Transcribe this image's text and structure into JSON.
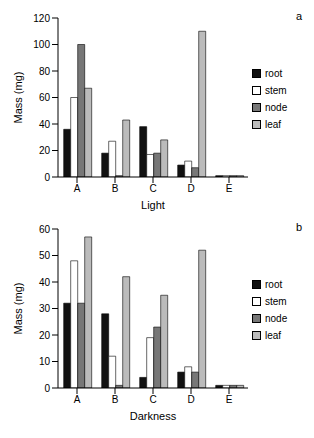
{
  "chart_data": [
    {
      "type": "bar",
      "title": "a",
      "x_label": "Light",
      "y_label": "Mass (mg)",
      "categories": [
        "A",
        "B",
        "C",
        "D",
        "E"
      ],
      "ylim": [
        0,
        120
      ],
      "yticks": [
        0,
        20,
        40,
        60,
        80,
        100,
        120
      ],
      "legend": "right",
      "series": [
        {
          "name": "root",
          "color": "#111111",
          "values": [
            36,
            18,
            38,
            9,
            1
          ]
        },
        {
          "name": "stem",
          "color": "#ffffff",
          "values": [
            60,
            27,
            17,
            12,
            1
          ]
        },
        {
          "name": "node",
          "color": "#777777",
          "values": [
            100,
            1,
            18,
            7,
            1
          ]
        },
        {
          "name": "leaf",
          "color": "#bbbbbb",
          "values": [
            67,
            43,
            28,
            110,
            1
          ]
        }
      ]
    },
    {
      "type": "bar",
      "title": "b",
      "x_label": "Darkness",
      "y_label": "Mass (mg)",
      "categories": [
        "A",
        "B",
        "C",
        "D",
        "E"
      ],
      "ylim": [
        0,
        60
      ],
      "yticks": [
        0,
        10,
        20,
        30,
        40,
        50,
        60
      ],
      "legend": "right",
      "series": [
        {
          "name": "root",
          "color": "#111111",
          "values": [
            32,
            28,
            4,
            6,
            1
          ]
        },
        {
          "name": "stem",
          "color": "#ffffff",
          "values": [
            48,
            12,
            19,
            8,
            1
          ]
        },
        {
          "name": "node",
          "color": "#777777",
          "values": [
            32,
            1,
            23,
            6,
            1
          ]
        },
        {
          "name": "leaf",
          "color": "#bbbbbb",
          "values": [
            57,
            42,
            35,
            52,
            1
          ]
        }
      ]
    }
  ]
}
